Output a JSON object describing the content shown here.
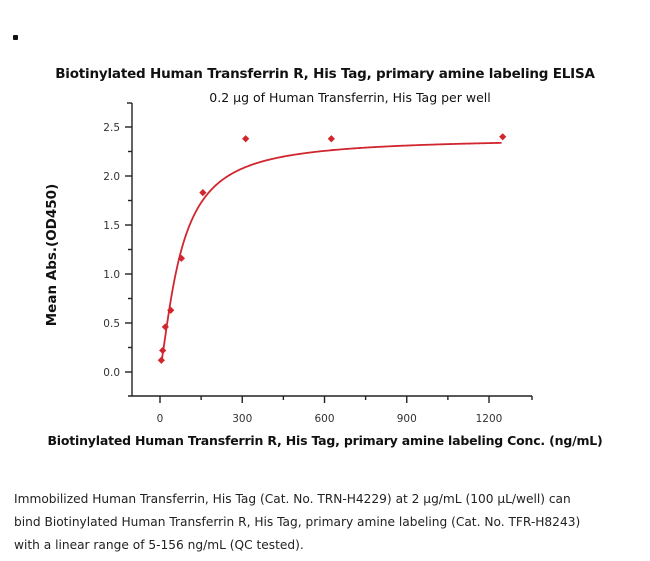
{
  "marker": "•",
  "chart_data": {
    "type": "scatter",
    "title": "Biotinylated Human Transferrin R, His Tag, primary amine labeling ELISA",
    "subtitle": "0.2 µg of Human Transferrin, His Tag per well",
    "xlabel": "Biotinylated Human Transferrin R, His Tag, primary amine labeling Conc. (ng/mL)",
    "ylabel": "Mean Abs.(OD450)",
    "xlim": [
      -100,
      1360
    ],
    "ylim": [
      0,
      2.7
    ],
    "xticks": [
      0,
      300,
      600,
      900,
      1200
    ],
    "yticks": [
      0.0,
      0.5,
      1.0,
      1.5,
      2.0,
      2.5
    ],
    "ytick_labels": [
      "0.0",
      "0.5",
      "1.0",
      "1.5",
      "2.0",
      "2.5"
    ],
    "grid": false,
    "legend": null,
    "color": "#d0262e",
    "marker": "diamond",
    "fit": "4-parameter logistic curve",
    "series": [
      {
        "name": "Mean Abs.(OD450)",
        "x": [
          4.9,
          9.8,
          19.5,
          39.1,
          78.1,
          156.3,
          312.5,
          625,
          1250
        ],
        "y": [
          0.12,
          0.22,
          0.46,
          0.63,
          1.16,
          1.83,
          2.38,
          2.38,
          2.4
        ]
      }
    ]
  },
  "caption": {
    "lines": [
      "Immobilized Human Transferrin, His Tag (Cat. No. TRN-H4229) at 2 µg/mL (100 µL/well) can",
      "bind Biotinylated Human Transferrin R, His Tag, primary amine labeling (Cat. No. TFR-H8243)",
      "with a linear range of 5-156 ng/mL (QC tested)."
    ]
  }
}
